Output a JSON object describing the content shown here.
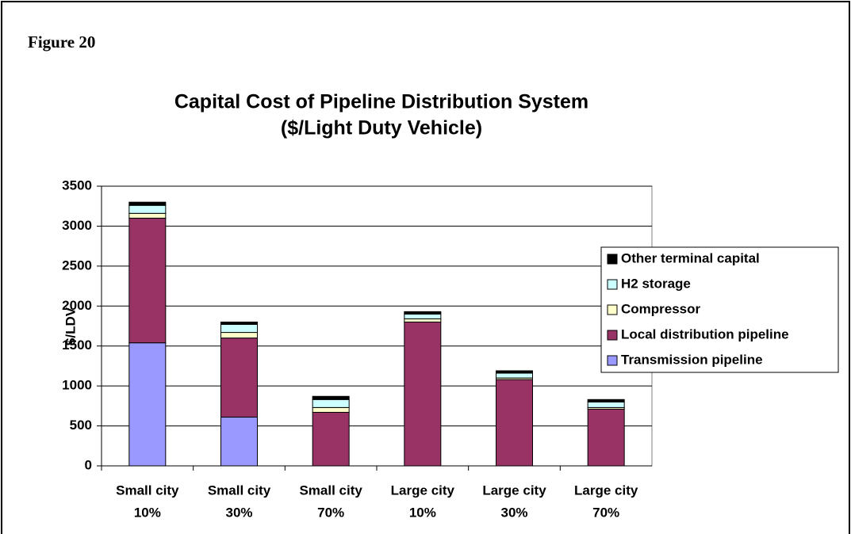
{
  "figure_label": "Figure 20",
  "chart_data": {
    "type": "stacked-bar",
    "title": "Capital Cost of Pipeline Distribution System",
    "subtitle": "($/Light Duty Vehicle)",
    "y_label": "$/LDV",
    "categories": [
      [
        "Small city",
        "10%"
      ],
      [
        "Small city",
        "30%"
      ],
      [
        "Small city",
        "70%"
      ],
      [
        "Large city",
        "10%"
      ],
      [
        "Large city",
        "30%"
      ],
      [
        "Large city",
        "70%"
      ]
    ],
    "series": [
      {
        "name": "Transmission pipeline",
        "color": "#9999ff",
        "values": [
          1540,
          610,
          0,
          0,
          0,
          0
        ]
      },
      {
        "name": "Local distribution pipeline",
        "color": "#993366",
        "values": [
          1560,
          990,
          670,
          1800,
          1080,
          710
        ]
      },
      {
        "name": "Compressor",
        "color": "#ffffcc",
        "values": [
          60,
          70,
          60,
          40,
          20,
          20
        ]
      },
      {
        "name": "H2 storage",
        "color": "#ccffff",
        "values": [
          100,
          100,
          100,
          60,
          60,
          70
        ]
      },
      {
        "name": "Other terminal capital",
        "color": "#000000",
        "values": [
          40,
          30,
          40,
          30,
          30,
          30
        ]
      }
    ],
    "ylim": [
      0,
      3500
    ],
    "yticks": [
      0,
      500,
      1000,
      1500,
      2000,
      2500,
      3000,
      3500
    ],
    "grid": true,
    "legend": "right"
  }
}
